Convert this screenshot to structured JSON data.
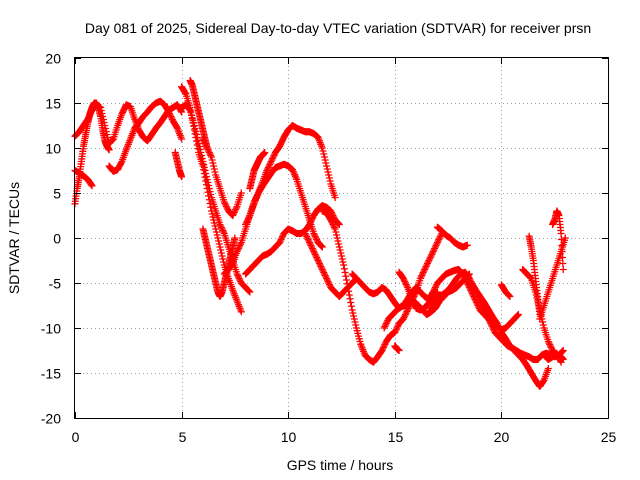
{
  "chart_data": {
    "type": "scatter",
    "title": "Day 081 of 2025, Sidereal Day-to-day VTEC variation (SDTVAR) for receiver prsn",
    "xlabel": "GPS time / hours",
    "ylabel": "SDTVAR / TECUs",
    "xlim": [
      0,
      25
    ],
    "ylim": [
      -20,
      20
    ],
    "xticks": [
      "0",
      "5",
      "10",
      "15",
      "20",
      "25"
    ],
    "yticks": [
      "-20",
      "-15",
      "-10",
      "-5",
      "0",
      "5",
      "10",
      "15",
      "20"
    ],
    "grid": true,
    "marker": "plus",
    "color": "#ff0000",
    "series": [
      {
        "x": [
          0.0,
          0.2,
          0.4,
          0.6,
          0.8,
          1.0,
          1.2,
          1.4,
          1.6,
          1.8,
          2.0,
          2.2,
          2.4,
          2.6,
          2.8,
          3.0,
          3.2,
          3.4,
          3.6,
          3.8,
          4.0,
          4.2,
          4.4,
          4.6,
          4.8,
          5.0
        ],
        "y": [
          11.3,
          11.8,
          12.5,
          13.2,
          14.2,
          14.8,
          14.5,
          12.5,
          10.5,
          11.0,
          12.5,
          13.8,
          14.8,
          14.6,
          13.2,
          12.0,
          11.2,
          10.8,
          11.5,
          12.2,
          12.8,
          13.5,
          14.2,
          14.5,
          14.8,
          14.0
        ]
      },
      {
        "x": [
          0.0,
          0.1,
          0.2,
          0.3,
          0.4,
          0.5,
          0.6,
          0.7,
          0.8,
          0.9,
          1.0,
          1.1,
          1.2,
          1.3,
          1.4,
          1.5,
          1.6
        ],
        "y": [
          3.8,
          5.5,
          6.8,
          8.5,
          10.2,
          11.5,
          12.8,
          13.8,
          14.5,
          15.0,
          15.0,
          14.5,
          13.5,
          12.0,
          10.8,
          10.2,
          9.8
        ]
      },
      {
        "x": [
          0.0,
          0.2,
          0.4,
          0.6,
          0.8
        ],
        "y": [
          7.5,
          7.2,
          6.9,
          6.5,
          5.8
        ]
      },
      {
        "x": [
          1.6,
          1.8,
          2.0,
          2.2,
          2.4,
          2.6,
          2.8,
          3.0,
          3.2,
          3.4,
          3.6,
          3.8,
          4.0,
          4.2,
          4.4,
          4.6,
          4.8,
          5.0
        ],
        "y": [
          8.0,
          7.4,
          7.6,
          8.5,
          9.8,
          11.0,
          12.2,
          12.8,
          13.5,
          14.0,
          14.6,
          15.0,
          15.2,
          14.8,
          14.0,
          13.0,
          12.2,
          11.0
        ]
      },
      {
        "x": [
          4.7,
          4.8,
          4.9,
          5.0
        ],
        "y": [
          9.5,
          8.5,
          7.5,
          6.8
        ]
      },
      {
        "x": [
          5.0,
          5.2,
          5.4,
          5.6,
          5.8,
          6.0,
          6.2,
          6.4,
          6.6,
          6.8,
          7.0,
          7.2,
          7.4,
          7.6,
          7.8
        ],
        "y": [
          16.8,
          16.0,
          14.5,
          12.0,
          9.5,
          8.0,
          5.5,
          3.0,
          1.0,
          -1.0,
          -3.0,
          -4.5,
          -5.8,
          -7.0,
          -8.2
        ]
      },
      {
        "x": [
          5.4,
          5.5,
          5.6,
          5.7,
          5.8,
          5.9,
          6.0,
          6.1,
          6.2
        ],
        "y": [
          17.5,
          17.0,
          16.0,
          15.0,
          14.0,
          13.0,
          12.0,
          11.0,
          10.0
        ]
      },
      {
        "x": [
          5.0,
          5.2,
          5.4,
          5.6,
          5.8,
          6.0,
          6.2,
          6.4,
          6.6,
          6.8,
          7.0,
          7.2,
          7.4,
          7.6,
          7.8,
          8.0,
          8.2
        ],
        "y": [
          14.5,
          14.8,
          14.2,
          12.5,
          10.5,
          8.5,
          6.5,
          4.5,
          3.0,
          1.5,
          0.5,
          -1.0,
          -2.5,
          -4.0,
          -5.0,
          -5.5,
          -6.0
        ]
      },
      {
        "x": [
          6.0,
          6.1,
          6.2,
          6.3,
          6.4,
          6.5,
          6.6,
          6.7,
          6.8,
          6.9,
          7.0,
          7.1,
          7.2,
          7.3,
          7.4,
          7.5
        ],
        "y": [
          1.0,
          0.0,
          -1.0,
          -2.0,
          -3.0,
          -4.0,
          -5.0,
          -6.0,
          -6.5,
          -6.0,
          -5.0,
          -4.0,
          -3.0,
          -2.0,
          -1.0,
          0.0
        ]
      },
      {
        "x": [
          6.0,
          6.2,
          6.4,
          6.6,
          6.8,
          7.0,
          7.2,
          7.4,
          7.6,
          7.8
        ],
        "y": [
          11.0,
          10.0,
          9.0,
          7.0,
          5.5,
          4.0,
          3.0,
          2.5,
          3.5,
          5.0
        ]
      },
      {
        "x": [
          7.0,
          7.2,
          7.4,
          7.6,
          7.8,
          8.0,
          8.2,
          8.4,
          8.6,
          8.8,
          9.0,
          9.2,
          9.4,
          9.6,
          9.8,
          10.0,
          10.2,
          10.4,
          10.6,
          10.8,
          11.0,
          11.2,
          11.4,
          11.6
        ],
        "y": [
          -4.0,
          -3.5,
          -2.8,
          -1.5,
          -0.5,
          1.0,
          2.5,
          4.0,
          5.0,
          5.8,
          6.5,
          7.2,
          7.8,
          8.0,
          8.2,
          8.0,
          7.6,
          6.5,
          5.0,
          3.5,
          2.0,
          0.5,
          -0.5,
          -1.0
        ]
      },
      {
        "x": [
          8.0,
          8.2,
          8.4,
          8.6,
          8.8,
          9.0,
          9.2,
          9.4,
          9.6,
          9.8,
          10.0,
          10.2,
          10.4,
          10.6,
          10.8,
          11.0,
          11.2,
          11.4,
          11.6,
          11.8,
          12.0,
          12.2,
          12.4
        ],
        "y": [
          -4.0,
          -3.5,
          -3.0,
          -2.5,
          -2.0,
          -1.8,
          -1.5,
          -1.0,
          -0.5,
          0.5,
          1.0,
          0.8,
          0.5,
          0.5,
          0.8,
          1.5,
          2.5,
          3.2,
          3.6,
          3.4,
          3.0,
          2.0,
          1.5
        ]
      },
      {
        "x": [
          8.0,
          8.2,
          8.4,
          8.6,
          8.8,
          9.0,
          9.2,
          9.4,
          9.6,
          9.8,
          10.0,
          10.2,
          10.4,
          10.6,
          10.8,
          11.0,
          11.2,
          11.4,
          11.6,
          11.8,
          12.0,
          12.2
        ],
        "y": [
          1.5,
          2.5,
          3.8,
          5.0,
          6.2,
          7.5,
          8.5,
          9.5,
          10.2,
          11.2,
          12.0,
          12.5,
          12.2,
          12.0,
          11.8,
          11.8,
          11.6,
          11.2,
          10.0,
          8.0,
          6.0,
          4.5
        ]
      },
      {
        "x": [
          8.2,
          8.3,
          8.4,
          8.5,
          8.6,
          8.7,
          8.8,
          8.9
        ],
        "y": [
          5.5,
          6.5,
          7.5,
          8.0,
          8.5,
          9.0,
          9.2,
          9.5
        ]
      },
      {
        "x": [
          11.6,
          11.8,
          12.0,
          12.2,
          12.4,
          12.6,
          12.8,
          13.0,
          13.2,
          13.4,
          13.6,
          13.8,
          14.0,
          14.2,
          14.4,
          14.6,
          14.8,
          15.0,
          15.2,
          15.4,
          15.6,
          15.8,
          16.0,
          16.2,
          16.4,
          16.6,
          16.8,
          17.0,
          17.2
        ],
        "y": [
          3.0,
          2.8,
          2.0,
          1.0,
          -1.0,
          -3.0,
          -5.5,
          -8.0,
          -10.0,
          -11.8,
          -13.0,
          -13.5,
          -13.8,
          -13.2,
          -12.5,
          -11.5,
          -10.8,
          -10.5,
          -9.5,
          -9.0,
          -8.0,
          -7.0,
          -6.0,
          -4.5,
          -3.5,
          -2.5,
          -1.5,
          -0.5,
          0.5
        ]
      },
      {
        "x": [
          10.8,
          11.0,
          11.2,
          11.4,
          11.6,
          11.8,
          12.0,
          12.2,
          12.4,
          12.6,
          12.8,
          13.0,
          13.2
        ],
        "y": [
          0.5,
          -0.5,
          -1.5,
          -2.5,
          -3.5,
          -4.5,
          -5.5,
          -6.0,
          -6.5,
          -6.0,
          -5.5,
          -5.0,
          -4.5
        ]
      },
      {
        "x": [
          13.0,
          13.2,
          13.4,
          13.6,
          13.8,
          14.0,
          14.2,
          14.4,
          14.6,
          14.8,
          15.0,
          15.2,
          15.4,
          15.6,
          15.8,
          16.0,
          16.2,
          16.4,
          16.6,
          16.8,
          17.0,
          17.2,
          17.4,
          17.6,
          17.8,
          18.0,
          18.2,
          18.4,
          18.6,
          18.8,
          19.0,
          19.2,
          19.4,
          19.6,
          19.8,
          20.0,
          20.2,
          20.4,
          20.6,
          20.8
        ],
        "y": [
          -4.0,
          -4.5,
          -5.0,
          -5.5,
          -6.0,
          -6.2,
          -6.0,
          -5.5,
          -5.8,
          -6.5,
          -7.2,
          -7.8,
          -7.5,
          -6.8,
          -6.0,
          -5.5,
          -6.0,
          -6.5,
          -6.8,
          -6.0,
          -5.0,
          -4.5,
          -4.0,
          -3.8,
          -3.6,
          -3.5,
          -4.0,
          -5.0,
          -6.0,
          -7.0,
          -8.0,
          -8.5,
          -9.0,
          -9.5,
          -9.8,
          -10.2,
          -10.0,
          -9.5,
          -9.0,
          -8.5
        ]
      },
      {
        "x": [
          14.5,
          14.7,
          14.9,
          15.1,
          15.3,
          15.5,
          15.7,
          15.9,
          16.1,
          16.3,
          16.5,
          16.7,
          16.9,
          17.1,
          17.3,
          17.5,
          17.7,
          17.9,
          18.1,
          18.3,
          18.5,
          18.7,
          18.9,
          19.1,
          19.3,
          19.5,
          19.7,
          19.9,
          20.1,
          20.3,
          20.5,
          20.7,
          20.9,
          21.1,
          21.3,
          21.5,
          21.7,
          21.9,
          22.1,
          22.3,
          22.5,
          22.7,
          22.9
        ],
        "y": [
          -10.0,
          -9.0,
          -8.5,
          -8.0,
          -7.6,
          -7.5,
          -7.2,
          -7.0,
          -7.5,
          -8.0,
          -8.5,
          -8.0,
          -7.2,
          -6.5,
          -6.2,
          -5.8,
          -5.2,
          -4.5,
          -4.0,
          -3.8,
          -4.5,
          -5.5,
          -6.5,
          -7.5,
          -8.5,
          -9.5,
          -10.5,
          -11.0,
          -11.5,
          -12.0,
          -12.2,
          -12.5,
          -12.8,
          -13.0,
          -13.2,
          -13.5,
          -13.5,
          -13.0,
          -12.8,
          -13.0,
          -13.2,
          -13.0,
          -12.5
        ]
      },
      {
        "x": [
          15.0,
          15.1,
          15.2
        ],
        "y": [
          -12.0,
          -12.3,
          -12.5
        ]
      },
      {
        "x": [
          15.2,
          15.4,
          15.6,
          15.8,
          16.0,
          16.2,
          16.4,
          16.6,
          16.8,
          17.0
        ],
        "y": [
          -3.8,
          -4.5,
          -5.5,
          -6.8,
          -7.8,
          -8.0,
          -7.8,
          -7.2,
          -6.5,
          -6.0
        ]
      },
      {
        "x": [
          16.5,
          16.7,
          16.9,
          17.1,
          17.3,
          17.5,
          17.7,
          17.9,
          18.1,
          18.3,
          18.5
        ],
        "y": [
          -8.5,
          -8.2,
          -7.8,
          -7.0,
          -6.5,
          -6.0,
          -5.8,
          -5.5,
          -5.0,
          -4.5,
          -4.0
        ]
      },
      {
        "x": [
          17.0,
          17.2,
          17.4,
          17.6,
          17.8,
          18.0,
          18.2,
          18.4
        ],
        "y": [
          1.2,
          0.8,
          0.3,
          0.0,
          -0.5,
          -0.8,
          -1.0,
          -0.8
        ]
      },
      {
        "x": [
          18.6,
          18.8,
          19.0,
          19.2,
          19.4,
          19.6,
          19.8,
          20.0,
          20.2,
          20.4,
          20.6,
          20.8,
          21.0,
          21.2,
          21.4,
          21.6,
          21.8,
          22.0,
          22.2
        ],
        "y": [
          -5.0,
          -5.8,
          -6.5,
          -7.2,
          -8.0,
          -8.8,
          -9.5,
          -10.5,
          -11.2,
          -12.0,
          -12.5,
          -13.0,
          -13.5,
          -14.2,
          -15.0,
          -15.8,
          -16.5,
          -15.8,
          -14.5
        ]
      },
      {
        "x": [
          20.0,
          20.2,
          20.4
        ],
        "y": [
          -5.2,
          -6.0,
          -6.5
        ]
      },
      {
        "x": [
          21.0,
          21.2,
          21.4,
          21.6,
          21.8,
          22.0,
          22.2,
          22.4,
          22.6,
          22.8,
          22.9
        ],
        "y": [
          -3.5,
          -4.0,
          -4.5,
          -6.0,
          -8.0,
          -10.0,
          -11.5,
          -12.5,
          -13.0,
          -13.2,
          -13.5
        ]
      },
      {
        "x": [
          21.3,
          21.4,
          21.5,
          21.6,
          21.7,
          21.8
        ],
        "y": [
          0.2,
          -1.0,
          -2.5,
          -4.5,
          -6.5,
          -8.5
        ]
      },
      {
        "x": [
          21.8,
          22.0,
          22.2,
          22.4,
          22.6,
          22.8,
          23.0
        ],
        "y": [
          -9.0,
          -7.5,
          -6.0,
          -4.5,
          -3.0,
          -1.5,
          0.0
        ]
      },
      {
        "x": [
          22.4,
          22.5,
          22.6,
          22.7,
          22.8,
          22.9
        ],
        "y": [
          1.5,
          2.0,
          3.0,
          2.5,
          0.5,
          -3.5
        ]
      },
      {
        "x": [
          22.0,
          22.2,
          22.4,
          22.6,
          22.8
        ],
        "y": [
          -13.0,
          -13.5,
          -13.2,
          -12.8,
          -13.8
        ]
      }
    ]
  }
}
